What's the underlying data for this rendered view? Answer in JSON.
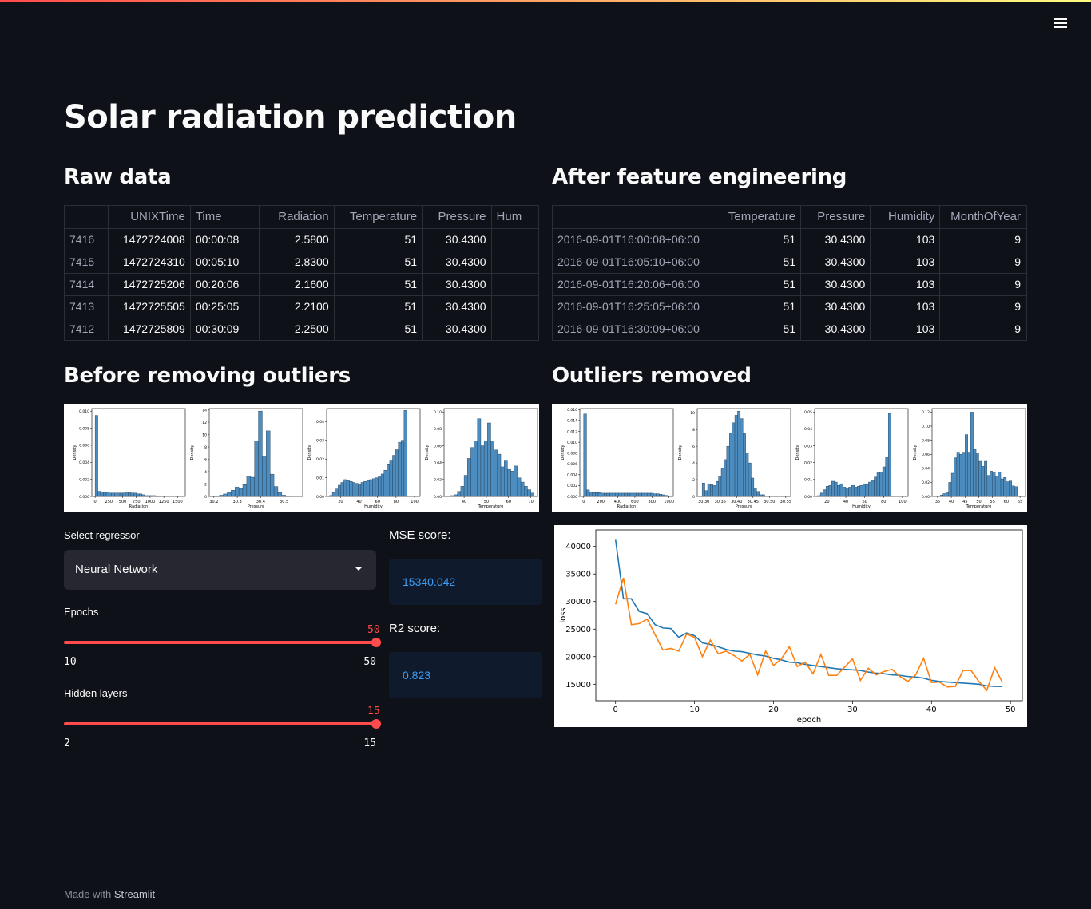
{
  "page": {
    "title": "Solar radiation prediction"
  },
  "sections": {
    "raw": "Raw data",
    "fe": "After feature engineering",
    "before": "Before removing outliers",
    "after": "Outliers removed"
  },
  "raw_table": {
    "columns": [
      "",
      "UNIXTime",
      "Time",
      "Radiation",
      "Temperature",
      "Pressure",
      "Hum"
    ],
    "rows": [
      [
        "7416",
        "1472724008",
        "00:00:08",
        "2.5800",
        "51",
        "30.4300",
        ""
      ],
      [
        "7415",
        "1472724310",
        "00:05:10",
        "2.8300",
        "51",
        "30.4300",
        ""
      ],
      [
        "7414",
        "1472725206",
        "00:20:06",
        "2.1600",
        "51",
        "30.4300",
        ""
      ],
      [
        "7413",
        "1472725505",
        "00:25:05",
        "2.2100",
        "51",
        "30.4300",
        ""
      ],
      [
        "7412",
        "1472725809",
        "00:30:09",
        "2.2500",
        "51",
        "30.4300",
        ""
      ]
    ]
  },
  "fe_table": {
    "columns": [
      "",
      "Temperature",
      "Pressure",
      "Humidity",
      "MonthOfYear"
    ],
    "rows": [
      [
        "2016-09-01T16:00:08+06:00",
        "51",
        "30.4300",
        "103",
        "9"
      ],
      [
        "2016-09-01T16:05:10+06:00",
        "51",
        "30.4300",
        "103",
        "9"
      ],
      [
        "2016-09-01T16:20:06+06:00",
        "51",
        "30.4300",
        "103",
        "9"
      ],
      [
        "2016-09-01T16:25:05+06:00",
        "51",
        "30.4300",
        "103",
        "9"
      ],
      [
        "2016-09-01T16:30:09+06:00",
        "51",
        "30.4300",
        "103",
        "9"
      ]
    ]
  },
  "controls": {
    "regressor_label": "Select regressor",
    "regressor_value": "Neural Network",
    "epochs": {
      "label": "Epochs",
      "value": 50,
      "min": 10,
      "max": 50
    },
    "hidden": {
      "label": "Hidden layers",
      "value": 15,
      "min": 2,
      "max": 15
    }
  },
  "metrics": {
    "mse_label": "MSE score:",
    "mse_value": "15340.042",
    "r2_label": "R2 score:",
    "r2_value": "0.823"
  },
  "footer": {
    "prefix": "Made with",
    "brand": "Streamlit"
  },
  "colors": {
    "accent": "#ff4b4b",
    "bar": "#4c8cbf",
    "line1": "#1f77b4",
    "line2": "#ff7f0e"
  },
  "chart_data": [
    {
      "type": "bar",
      "panel": "before",
      "xlabel": "Radiation",
      "ylabel": "Density",
      "xticks": [
        "0",
        "250",
        "500",
        "750",
        "1000",
        "1250",
        "1500"
      ],
      "yticks": [
        "0.000",
        "0.002",
        "0.004",
        "0.006",
        "0.008",
        "0.010"
      ],
      "xlim": [
        -60,
        1640
      ],
      "ylim": [
        0,
        0.0103
      ],
      "bins_x0": 0,
      "bin_width": 50,
      "values": [
        0.0095,
        0.0006,
        0.0005,
        0.0005,
        0.0005,
        0.0004,
        0.0004,
        0.0004,
        0.0004,
        0.0004,
        0.0004,
        0.0005,
        0.0005,
        0.0004,
        0.0004,
        0.0003,
        0.0003,
        0.0002,
        0.0001,
        0.0001,
        0.0001,
        0.0001,
        5e-05,
        5e-05
      ]
    },
    {
      "type": "bar",
      "panel": "before",
      "xlabel": "Pressure",
      "ylabel": "Density",
      "xticks": [
        "30.2",
        "30.3",
        "30.4",
        "30.5"
      ],
      "xtick_values": [
        30.2,
        30.3,
        30.4,
        30.5
      ],
      "yticks": [
        "0",
        "2",
        "4",
        "6",
        "8",
        "10",
        "12",
        "14"
      ],
      "xlim": [
        30.18,
        30.58
      ],
      "ylim": [
        0,
        14.2
      ],
      "bins_x0": 30.19,
      "bin_width": 0.0167,
      "values": [
        0.1,
        0.1,
        0.2,
        0.4,
        0.6,
        1.0,
        1.5,
        1.3,
        1.9,
        3.3,
        3.1,
        9.0,
        13.8,
        6.4,
        10.6,
        3.6,
        1.6,
        0.6,
        0.2,
        0.1
      ]
    },
    {
      "type": "bar",
      "panel": "before",
      "xlabel": "Humidity",
      "ylabel": "Density",
      "xticks": [
        "20",
        "40",
        "60",
        "80",
        "100"
      ],
      "xtick_values": [
        20,
        40,
        60,
        80,
        100
      ],
      "yticks": [
        "0.00",
        "0.01",
        "0.02",
        "0.03",
        "0.04"
      ],
      "xlim": [
        5,
        106
      ],
      "ylim": [
        0,
        0.047
      ],
      "bins_x0": 8,
      "bin_width": 3.1,
      "values": [
        0.0005,
        0.002,
        0.004,
        0.006,
        0.0075,
        0.009,
        0.0085,
        0.008,
        0.0075,
        0.007,
        0.0065,
        0.0075,
        0.008,
        0.0085,
        0.009,
        0.0095,
        0.01,
        0.011,
        0.012,
        0.014,
        0.017,
        0.019,
        0.022,
        0.025,
        0.029,
        0.03,
        0.046
      ]
    },
    {
      "type": "bar",
      "panel": "before",
      "xlabel": "Temperature",
      "ylabel": "Density",
      "xticks": [
        "40",
        "50",
        "60",
        "70"
      ],
      "xtick_values": [
        40,
        50,
        60,
        70
      ],
      "yticks": [
        "0.00",
        "0.02",
        "0.04",
        "0.06",
        "0.08",
        "0.10"
      ],
      "xlim": [
        31,
        73
      ],
      "ylim": [
        0,
        0.104
      ],
      "bins_x0": 34,
      "bin_width": 1.5,
      "values": [
        0.001,
        0.002,
        0.006,
        0.012,
        0.025,
        0.045,
        0.058,
        0.066,
        0.092,
        0.06,
        0.066,
        0.087,
        0.066,
        0.055,
        0.05,
        0.035,
        0.042,
        0.032,
        0.03,
        0.036,
        0.022,
        0.017,
        0.012,
        0.008,
        0.004
      ]
    },
    {
      "type": "bar",
      "panel": "after",
      "xlabel": "Radiation",
      "ylabel": "Density",
      "xticks": [
        "0",
        "200",
        "400",
        "600",
        "800",
        "1000"
      ],
      "xtick_values": [
        0,
        200,
        400,
        600,
        800,
        1000
      ],
      "yticks": [
        "0.000",
        "0.002",
        "0.004",
        "0.006",
        "0.008",
        "0.010",
        "0.012",
        "0.014",
        "0.016"
      ],
      "xlim": [
        -45,
        1050
      ],
      "ylim": [
        0,
        0.0162
      ],
      "bins_x0": 0,
      "bin_width": 34,
      "values": [
        0.0152,
        0.0012,
        0.0008,
        0.0007,
        0.0007,
        0.0007,
        0.0006,
        0.0006,
        0.0006,
        0.0006,
        0.0006,
        0.0006,
        0.0006,
        0.0006,
        0.0006,
        0.0006,
        0.0006,
        0.0006,
        0.0006,
        0.0006,
        0.0006,
        0.0006,
        0.0006,
        0.0006,
        0.0005,
        0.0005,
        0.0004,
        0.0003,
        0.0002,
        0.0001
      ]
    },
    {
      "type": "bar",
      "panel": "after",
      "xlabel": "Pressure",
      "ylabel": "Density",
      "xticks": [
        "30.30",
        "30.35",
        "30.40",
        "30.45",
        "30.50",
        "30.55"
      ],
      "xtick_values": [
        30.3,
        30.35,
        30.4,
        30.45,
        30.5,
        30.55
      ],
      "yticks": [
        "0",
        "2",
        "4",
        "6",
        "8",
        "10"
      ],
      "xlim": [
        30.28,
        30.565
      ],
      "ylim": [
        0,
        10.5
      ],
      "bins_x0": 30.295,
      "bin_width": 0.0083,
      "values": [
        1.6,
        0.7,
        1.5,
        1.4,
        1.3,
        1.8,
        2.4,
        3.3,
        4.4,
        6.0,
        7.5,
        8.8,
        9.7,
        10.2,
        9.3,
        7.5,
        5.2,
        4.0,
        2.2,
        1.0,
        0.6,
        0.2,
        0.2
      ]
    },
    {
      "type": "bar",
      "panel": "after",
      "xlabel": "Humidity",
      "ylabel": "Density",
      "xticks": [
        "20",
        "40",
        "60",
        "80",
        "100"
      ],
      "xtick_values": [
        20,
        40,
        60,
        80,
        100
      ],
      "yticks": [
        "0.00",
        "0.01",
        "0.02",
        "0.03",
        "0.04",
        "0.05"
      ],
      "xlim": [
        7,
        106
      ],
      "ylim": [
        0,
        0.052
      ],
      "bins_x0": 10,
      "bin_width": 3.0,
      "values": [
        0.0005,
        0.002,
        0.004,
        0.006,
        0.0065,
        0.009,
        0.0085,
        0.0065,
        0.0075,
        0.0055,
        0.005,
        0.0055,
        0.0065,
        0.0055,
        0.006,
        0.0065,
        0.0075,
        0.007,
        0.0085,
        0.0095,
        0.0115,
        0.0145,
        0.0145,
        0.0175,
        0.023,
        0.049
      ]
    },
    {
      "type": "bar",
      "panel": "after",
      "xlabel": "Temperature",
      "ylabel": "Density",
      "xticks": [
        "35",
        "40",
        "45",
        "50",
        "55",
        "60",
        "65"
      ],
      "xtick_values": [
        35,
        40,
        45,
        50,
        55,
        60,
        65
      ],
      "yticks": [
        "0.00",
        "0.02",
        "0.04",
        "0.06",
        "0.08",
        "0.10",
        "0.12"
      ],
      "xlim": [
        33,
        67
      ],
      "ylim": [
        0,
        0.125
      ],
      "bins_x0": 36,
      "bin_width": 1.0,
      "values": [
        0.002,
        0.004,
        0.006,
        0.02,
        0.033,
        0.055,
        0.063,
        0.06,
        0.063,
        0.088,
        0.063,
        0.12,
        0.067,
        0.062,
        0.05,
        0.043,
        0.05,
        0.03,
        0.036,
        0.035,
        0.029,
        0.035,
        0.025,
        0.027,
        0.021,
        0.022,
        0.015,
        0.014
      ]
    },
    {
      "type": "line",
      "panel": "loss",
      "xlabel": "epoch",
      "ylabel": "loss",
      "xticks": [
        "0",
        "10",
        "20",
        "30",
        "40",
        "50"
      ],
      "xtick_values": [
        0,
        10,
        20,
        30,
        40,
        50
      ],
      "yticks": [
        "15000",
        "20000",
        "25000",
        "30000",
        "35000",
        "40000"
      ],
      "ytick_values": [
        15000,
        20000,
        25000,
        30000,
        35000,
        40000
      ],
      "xlim": [
        -2.5,
        51.5
      ],
      "ylim": [
        12000,
        43000
      ],
      "x": [
        0,
        1,
        2,
        3,
        4,
        5,
        6,
        7,
        8,
        9,
        10,
        11,
        12,
        13,
        14,
        15,
        16,
        17,
        18,
        19,
        20,
        21,
        22,
        23,
        24,
        25,
        26,
        27,
        28,
        29,
        30,
        31,
        32,
        33,
        34,
        35,
        36,
        37,
        38,
        39,
        40,
        41,
        42,
        43,
        44,
        45,
        46,
        47,
        48,
        49
      ],
      "series": [
        {
          "values": [
            41200,
            30500,
            30500,
            28200,
            27800,
            25800,
            25200,
            25100,
            23500,
            24300,
            23800,
            22500,
            22200,
            21800,
            21300,
            21000,
            20900,
            20600,
            20300,
            20100,
            19700,
            19400,
            19000,
            18900,
            18600,
            18400,
            18200,
            18000,
            17800,
            17700,
            17600,
            17500,
            17200,
            17000,
            16900,
            16700,
            16600,
            16400,
            16300,
            16100,
            15700,
            15500,
            15400,
            15300,
            15200,
            15100,
            15000,
            14700,
            14600,
            14600
          ]
        },
        {
          "values": [
            29500,
            34300,
            25800,
            26000,
            26800,
            24000,
            21200,
            21500,
            21000,
            24100,
            23500,
            20000,
            23000,
            20500,
            21000,
            20200,
            19200,
            20400,
            16700,
            21000,
            18400,
            19600,
            21800,
            18200,
            19000,
            16900,
            20400,
            16600,
            16600,
            18100,
            19600,
            15700,
            17900,
            16700,
            17300,
            17700,
            16400,
            15500,
            16700,
            19700,
            15300,
            15400,
            14500,
            14600,
            17500,
            17500,
            15500,
            13900,
            18000,
            15300
          ]
        }
      ]
    }
  ]
}
